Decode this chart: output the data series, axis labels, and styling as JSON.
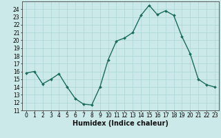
{
  "x": [
    0,
    1,
    2,
    3,
    4,
    5,
    6,
    7,
    8,
    9,
    10,
    11,
    12,
    13,
    14,
    15,
    16,
    17,
    18,
    19,
    20,
    21,
    22,
    23
  ],
  "y": [
    15.8,
    16.0,
    14.4,
    15.0,
    15.7,
    14.0,
    12.5,
    11.8,
    11.7,
    14.0,
    17.5,
    19.9,
    20.3,
    21.0,
    23.2,
    24.5,
    23.3,
    23.8,
    23.2,
    20.5,
    18.3,
    15.0,
    14.3,
    14.0
  ],
  "line_color": "#1a6b5a",
  "marker": "D",
  "marker_size": 2.0,
  "bg_color": "#cce9e9",
  "grid_color": "#aad4d4",
  "xlabel": "Humidex (Indice chaleur)",
  "ylim": [
    11,
    25
  ],
  "xlim": [
    -0.5,
    23.5
  ],
  "yticks": [
    11,
    12,
    13,
    14,
    15,
    16,
    17,
    18,
    19,
    20,
    21,
    22,
    23,
    24
  ],
  "xticks": [
    0,
    1,
    2,
    3,
    4,
    5,
    6,
    7,
    8,
    9,
    10,
    11,
    12,
    13,
    14,
    15,
    16,
    17,
    18,
    19,
    20,
    21,
    22,
    23
  ],
  "tick_fontsize": 5.5,
  "xlabel_fontsize": 7.0,
  "linewidth": 1.0
}
